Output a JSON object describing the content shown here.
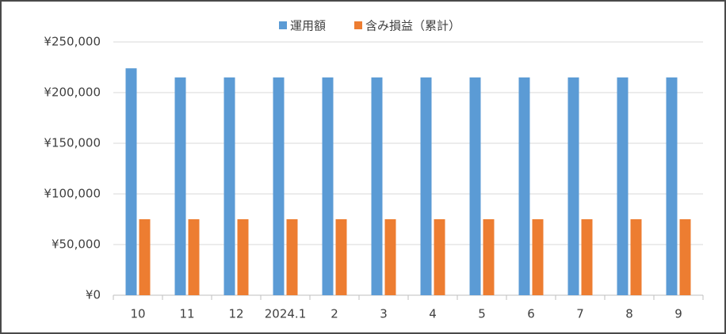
{
  "chart_data": {
    "type": "bar",
    "categories": [
      "10",
      "11",
      "12",
      "2024.1",
      "2",
      "3",
      "4",
      "5",
      "6",
      "7",
      "8",
      "9"
    ],
    "series": [
      {
        "name": "運用額",
        "color": "#5b9bd5",
        "values": [
          224000,
          215000,
          215000,
          215000,
          215000,
          215000,
          215000,
          215000,
          215000,
          215000,
          215000,
          215000
        ]
      },
      {
        "name": "含み損益（累計）",
        "color": "#ed7d31",
        "values": [
          75000,
          75000,
          75000,
          75000,
          75000,
          75000,
          75000,
          75000,
          75000,
          75000,
          75000,
          75000
        ]
      }
    ],
    "ylim": [
      0,
      250000
    ],
    "yticks": [
      {
        "value": 0,
        "label": "¥0"
      },
      {
        "value": 50000,
        "label": "¥50,000"
      },
      {
        "value": 100000,
        "label": "¥100,000"
      },
      {
        "value": 150000,
        "label": "¥150,000"
      },
      {
        "value": 200000,
        "label": "¥200,000"
      },
      {
        "value": 250000,
        "label": "¥250,000"
      }
    ],
    "grid": true,
    "legend": "top"
  }
}
